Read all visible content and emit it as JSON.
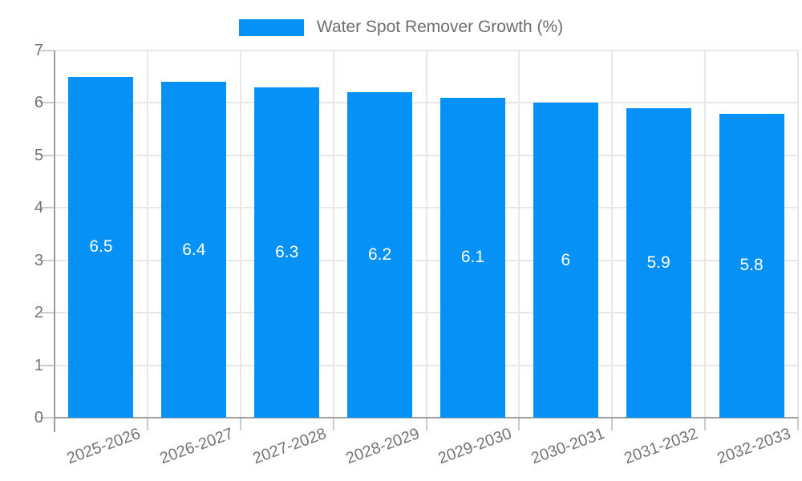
{
  "legend": {
    "label": "Water Spot Remover Growth (%)"
  },
  "chart_data": {
    "type": "bar",
    "title": "Water Spot Remover Growth (%)",
    "categories": [
      "2025-2026",
      "2026-2027",
      "2027-2028",
      "2028-2029",
      "2029-2030",
      "2030-2031",
      "2031-2032",
      "2032-2033"
    ],
    "values": [
      6.5,
      6.4,
      6.3,
      6.2,
      6.1,
      6,
      5.9,
      5.8
    ],
    "bar_labels": [
      "6.5",
      "6.4",
      "6.3",
      "6.2",
      "6.1",
      "6",
      "5.9",
      "5.8"
    ],
    "xlabel": "",
    "ylabel": "",
    "ylim": [
      0,
      7
    ],
    "y_ticks": [
      "0",
      "1",
      "2",
      "3",
      "4",
      "5",
      "6",
      "7"
    ],
    "grid": true,
    "legend_position": "top",
    "colors": {
      "bar": "#0591f5",
      "grid": "#e8e8e8",
      "axis": "#9e9e9e",
      "tick": "#cccccc",
      "axis_text": "#757575",
      "legend_text": "#6e6e6e",
      "bar_label_text": "#ffffff",
      "background": "#ffffff"
    }
  }
}
